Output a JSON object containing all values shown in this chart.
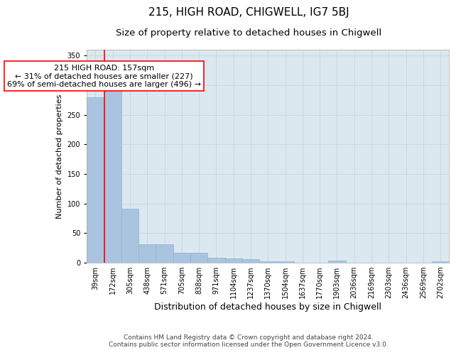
{
  "title": "215, HIGH ROAD, CHIGWELL, IG7 5BJ",
  "subtitle": "Size of property relative to detached houses in Chigwell",
  "xlabel": "Distribution of detached houses by size in Chigwell",
  "ylabel": "Number of detached properties",
  "categories": [
    "39sqm",
    "172sqm",
    "305sqm",
    "438sqm",
    "571sqm",
    "705sqm",
    "838sqm",
    "971sqm",
    "1104sqm",
    "1237sqm",
    "1370sqm",
    "1504sqm",
    "1637sqm",
    "1770sqm",
    "1903sqm",
    "2036sqm",
    "2169sqm",
    "2303sqm",
    "2436sqm",
    "2569sqm",
    "2702sqm"
  ],
  "values": [
    280,
    290,
    91,
    31,
    31,
    17,
    17,
    9,
    7,
    6,
    2,
    2,
    0,
    0,
    4,
    0,
    0,
    0,
    0,
    0,
    3
  ],
  "bar_color": "#aac4e0",
  "bar_edge_color": "#8ab4d0",
  "vline_color": "red",
  "vline_pos": 0.5,
  "annotation_text": "215 HIGH ROAD: 157sqm\n← 31% of detached houses are smaller (227)\n69% of semi-detached houses are larger (496) →",
  "annotation_box_color": "white",
  "annotation_box_edge": "red",
  "ylim": [
    0,
    360
  ],
  "yticks": [
    0,
    50,
    100,
    150,
    200,
    250,
    300,
    350
  ],
  "grid_color": "#c8d4e0",
  "bg_color": "#dce8f0",
  "footnote": "Contains HM Land Registry data © Crown copyright and database right 2024.\nContains public sector information licensed under the Open Government Licence v3.0.",
  "title_fontsize": 11,
  "subtitle_fontsize": 9.5,
  "xlabel_fontsize": 9,
  "ylabel_fontsize": 8,
  "tick_fontsize": 7,
  "annot_fontsize": 8,
  "footnote_fontsize": 6.5
}
